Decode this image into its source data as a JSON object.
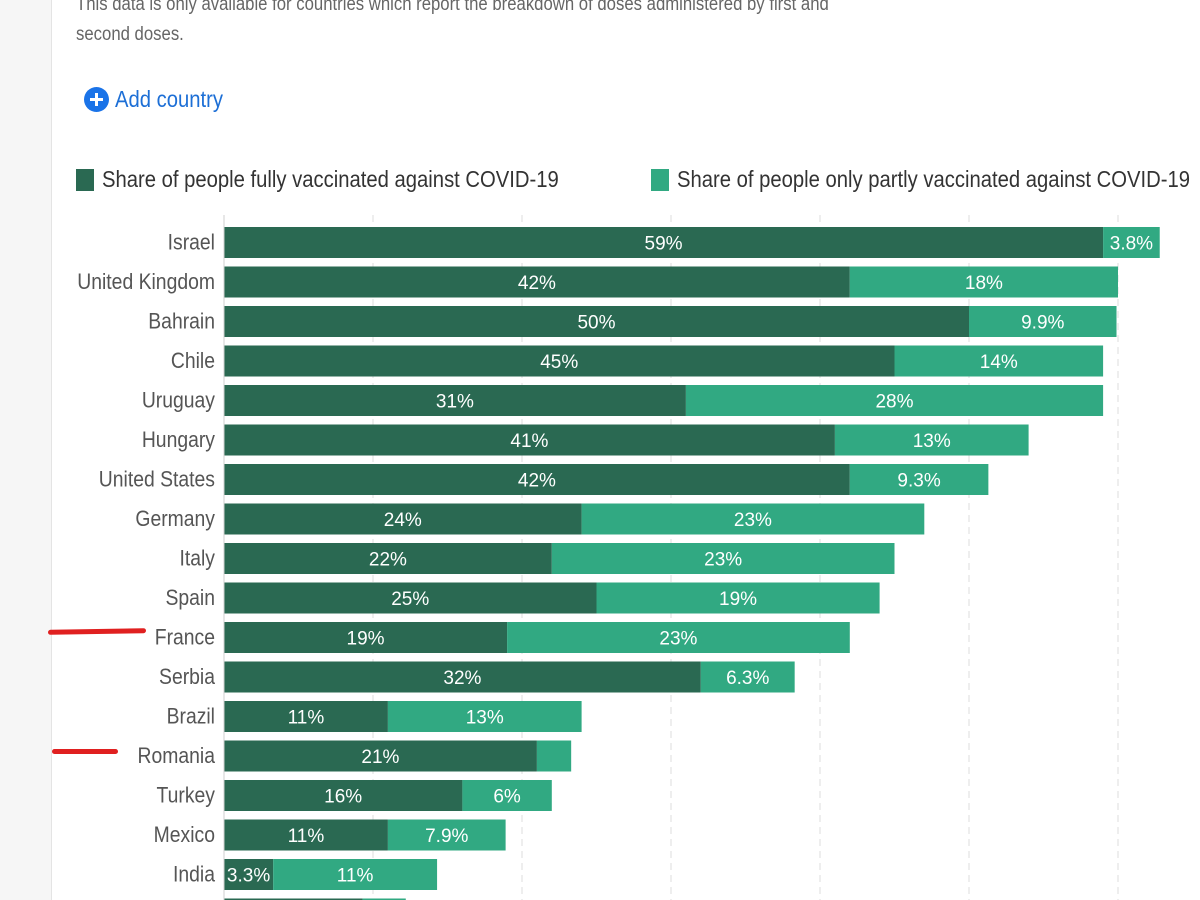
{
  "page": {
    "note_line1": "This data is only available for countries which report the breakdown of doses administered by first and",
    "note_line2": "second doses.",
    "add_country_label": "Add country",
    "add_country_icon": "plus-circle-icon"
  },
  "colors": {
    "fully": "#2a6952",
    "partly": "#31a982",
    "accent_link": "#1d6fd6",
    "annotation": "#e02020"
  },
  "chart_data": {
    "type": "bar",
    "orientation": "horizontal",
    "stacked": true,
    "title": "",
    "xlabel": "",
    "ylabel": "",
    "xlim": [
      0,
      63
    ],
    "grid": true,
    "legend_position": "top-left",
    "series": [
      {
        "name": "Share of people fully vaccinated against COVID-19",
        "key": "fully"
      },
      {
        "name": "Share of people only partly vaccinated against COVID-19",
        "key": "partly"
      }
    ],
    "categories": [
      "Israel",
      "United Kingdom",
      "Bahrain",
      "Chile",
      "Uruguay",
      "Hungary",
      "United States",
      "Germany",
      "Italy",
      "Spain",
      "France",
      "Serbia",
      "Brazil",
      "Romania",
      "Turkey",
      "Mexico",
      "India",
      ""
    ],
    "fully": [
      59,
      42,
      50,
      45,
      31,
      41,
      42,
      24,
      22,
      25,
      19,
      32,
      11,
      21,
      16,
      11,
      3.3,
      9.3
    ],
    "partly": [
      3.8,
      18,
      9.9,
      14,
      28,
      13,
      9.3,
      23,
      23,
      19,
      23,
      6.3,
      13,
      2.3,
      6,
      7.9,
      11,
      2.9
    ],
    "fully_labels": [
      "59%",
      "42%",
      "50%",
      "45%",
      "31%",
      "41%",
      "42%",
      "24%",
      "22%",
      "25%",
      "19%",
      "32%",
      "11%",
      "21%",
      "16%",
      "11%",
      "3.3%",
      ""
    ],
    "partly_labels": [
      "3.8%",
      "18%",
      "9.9%",
      "14%",
      "28%",
      "13%",
      "9.3%",
      "23%",
      "23%",
      "19%",
      "23%",
      "6.3%",
      "13%",
      "",
      "6%",
      "7.9%",
      "11%",
      ""
    ],
    "highlighted": [
      "France",
      "Romania"
    ]
  }
}
